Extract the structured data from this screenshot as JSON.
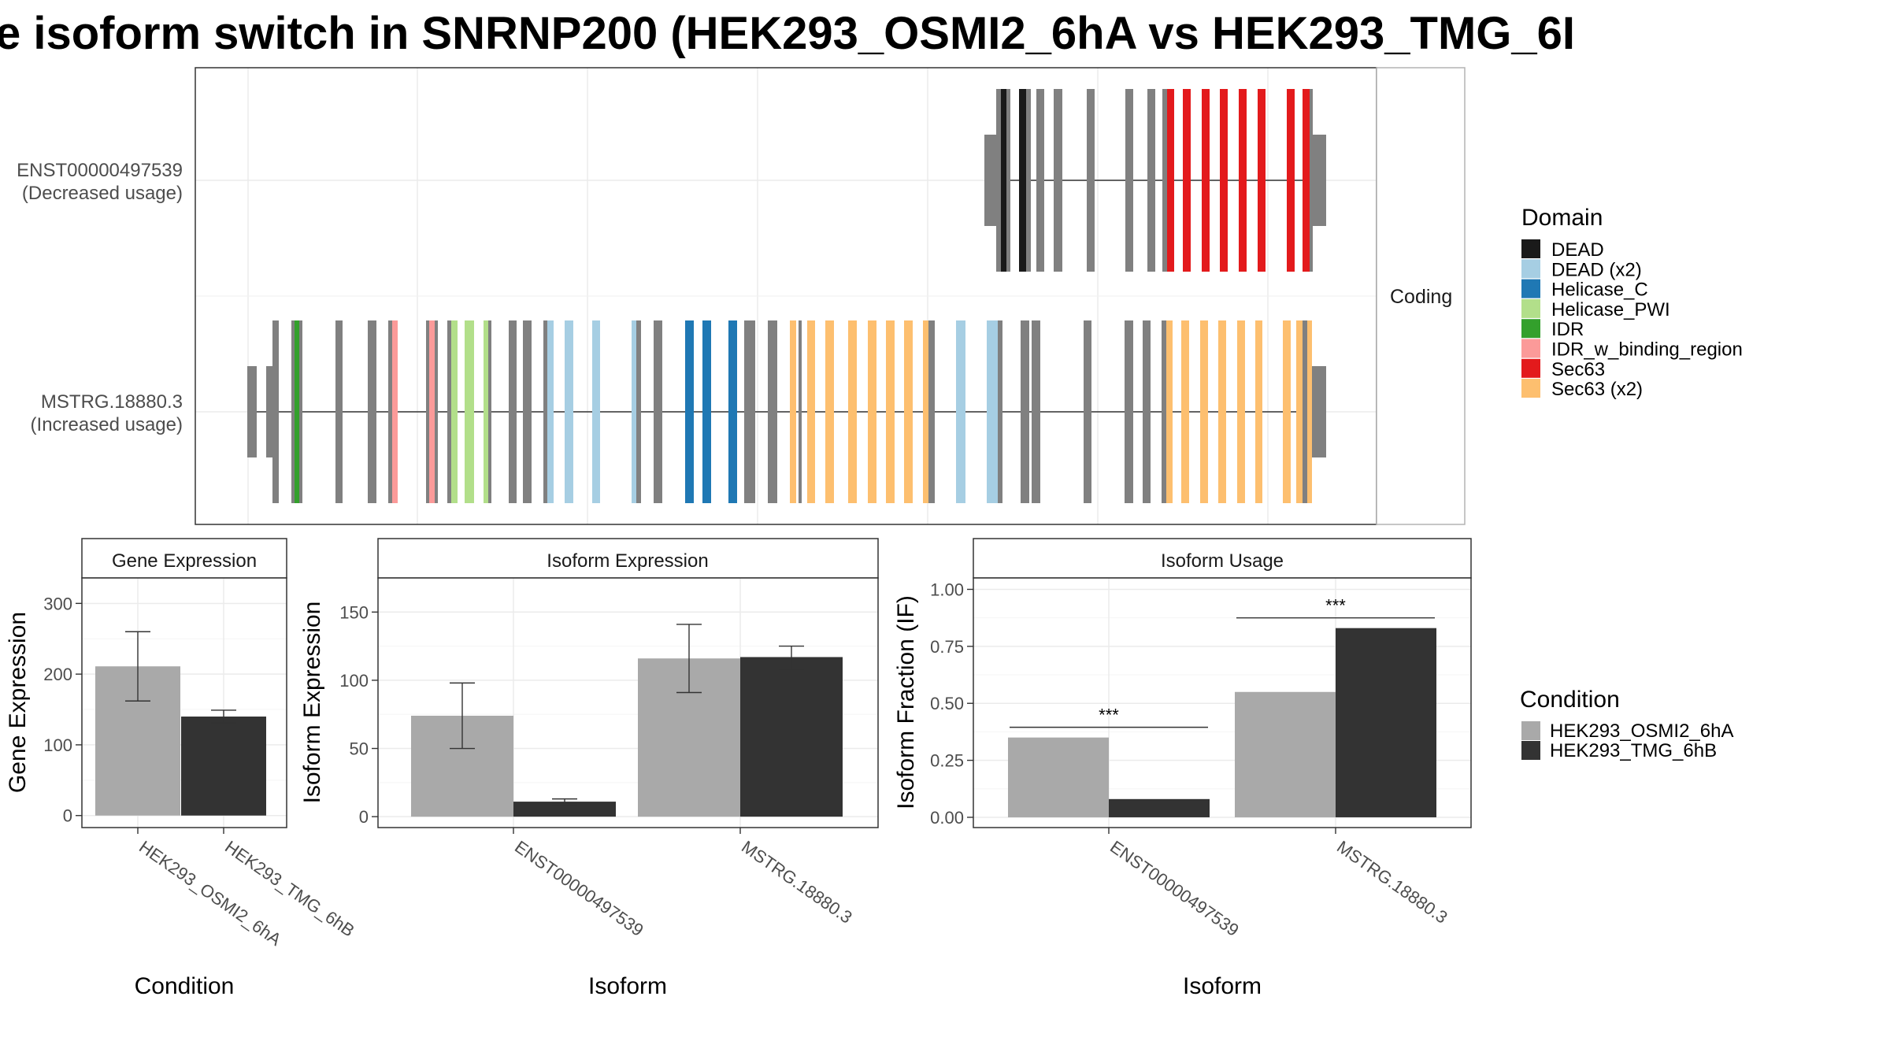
{
  "title": "e isoform switch in SNRNP200 (HEK293_OSMI2_6hA vs HEK293_TMG_6I",
  "colors": {
    "DEAD": "#1a1a1a",
    "DEAD (x2)": "#a6cee3",
    "Helicase_C": "#1f78b4",
    "Helicase_PWI": "#b2df8a",
    "IDR": "#33a02c",
    "IDR_w_binding_region": "#fb9a99",
    "Sec63": "#e31a1c",
    "Sec63 (x2)": "#fdbf6f",
    "exon": "#808080",
    "cond_a": "#a9a9a9",
    "cond_b": "#333333"
  },
  "structure": {
    "strip_label": "Coding",
    "isoforms": [
      {
        "name": "ENST00000497539",
        "note": "(Decreased usage)"
      },
      {
        "name": "MSTRG.18880.3",
        "note": "(Increased usage)"
      }
    ]
  },
  "domain_legend": {
    "title": "Domain",
    "items": [
      "DEAD",
      "DEAD (x2)",
      "Helicase_C",
      "Helicase_PWI",
      "IDR",
      "IDR_w_binding_region",
      "Sec63",
      "Sec63 (x2)"
    ]
  },
  "condition_legend": {
    "title": "Condition",
    "items": [
      "HEK293_OSMI2_6hA",
      "HEK293_TMG_6hB"
    ]
  },
  "chart_data": [
    {
      "type": "bar",
      "title": "Gene Expression",
      "xlabel": "Condition",
      "ylabel": "Gene Expression",
      "categories": [
        "HEK293_OSMI2_6hA",
        "HEK293_TMG_6hB"
      ],
      "values": [
        211,
        140
      ],
      "error": [
        [
          162,
          260
        ],
        [
          131,
          149
        ]
      ],
      "yticks": [
        0,
        100,
        200,
        300
      ],
      "ylim": [
        -17,
        336
      ]
    },
    {
      "type": "bar",
      "title": "Isoform Expression",
      "xlabel": "Isoform",
      "ylabel": "Isoform Expression",
      "categories": [
        "ENST00000497539",
        "MSTRG.18880.3"
      ],
      "series": [
        {
          "name": "HEK293_OSMI2_6hA",
          "values": [
            74,
            116
          ],
          "error": [
            [
              50,
              98
            ],
            [
              91,
              141
            ]
          ]
        },
        {
          "name": "HEK293_TMG_6hB",
          "values": [
            11,
            117
          ],
          "error": [
            [
              9,
              13
            ],
            [
              108,
              125
            ]
          ]
        }
      ],
      "yticks": [
        0,
        50,
        100,
        150
      ],
      "ylim": [
        -8,
        175
      ]
    },
    {
      "type": "bar",
      "title": "Isoform Usage",
      "xlabel": "Isoform",
      "ylabel": "Isoform Fraction (IF)",
      "categories": [
        "ENST00000497539",
        "MSTRG.18880.3"
      ],
      "series": [
        {
          "name": "HEK293_OSMI2_6hA",
          "values": [
            0.35,
            0.55
          ]
        },
        {
          "name": "HEK293_TMG_6hB",
          "values": [
            0.08,
            0.83
          ]
        }
      ],
      "significance": [
        "***",
        "***"
      ],
      "yticks": [
        "0.00",
        "0.25",
        "0.50",
        "0.75",
        "1.00"
      ],
      "ylim": [
        -0.045,
        1.05
      ]
    }
  ]
}
